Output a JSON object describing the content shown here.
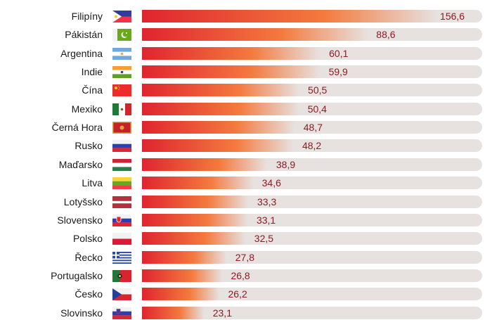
{
  "chart_data": {
    "type": "bar",
    "orientation": "horizontal",
    "title": "",
    "xlabel": "",
    "ylabel": "",
    "categories": [
      "Filipíny",
      "Pákistán",
      "Argentina",
      "Indie",
      "Čína",
      "Mexiko",
      "Černá Hora",
      "Rusko",
      "Maďarsko",
      "Litva",
      "Lotyšsko",
      "Slovensko",
      "Polsko",
      "Řecko",
      "Portugalsko",
      "Česko",
      "Slovinsko"
    ],
    "values": [
      156.6,
      88.6,
      60.1,
      59.9,
      50.5,
      50.4,
      48.7,
      48.2,
      38.9,
      34.6,
      33.3,
      33.1,
      32.5,
      27.8,
      26.8,
      26.2,
      23.1
    ],
    "value_labels": [
      "156,6",
      "88,6",
      "60,1",
      "59,9",
      "50,5",
      "50,4",
      "48,7",
      "48,2",
      "38,9",
      "34,6",
      "33,3",
      "33,1",
      "32,5",
      "27,8",
      "26,8",
      "26,2",
      "23,1"
    ],
    "flags": [
      "philippines-flag",
      "pakistan-flag",
      "argentina-flag",
      "india-flag",
      "china-flag",
      "mexico-flag",
      "montenegro-flag",
      "russia-flag",
      "hungary-flag",
      "lithuania-flag",
      "latvia-flag",
      "slovakia-flag",
      "poland-flag",
      "greece-flag",
      "portugal-flag",
      "czechia-flag",
      "slovenia-flag"
    ],
    "grid": false,
    "legend": "none",
    "colors": {
      "gradient_start": "#e0242f",
      "gradient_mid": "#f47a3e",
      "track": "#e7e1df",
      "value_text": "#8c1c24",
      "label_text": "#1a1a1a"
    }
  }
}
